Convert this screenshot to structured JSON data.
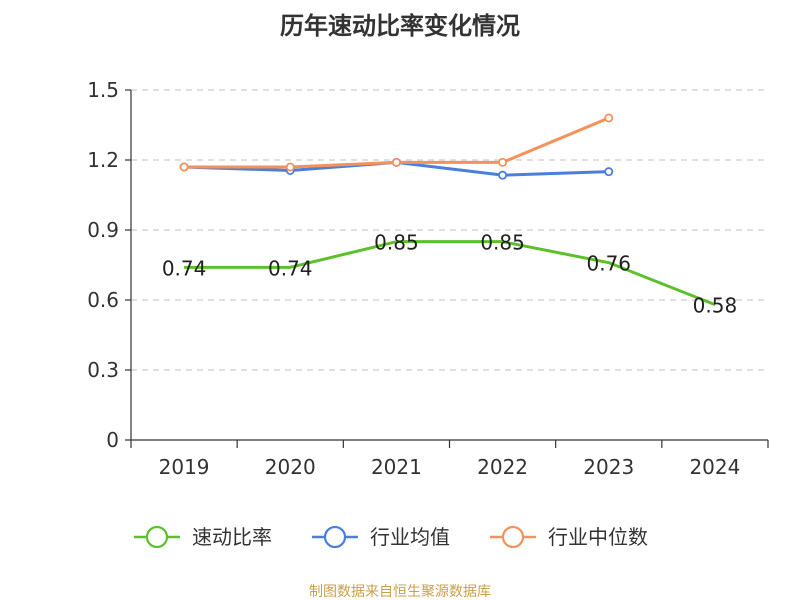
{
  "chart_data": {
    "type": "line",
    "title": "历年速动比率变化情况",
    "categories": [
      "2019",
      "2020",
      "2021",
      "2022",
      "2023",
      "2024"
    ],
    "y_ticks": [
      "0",
      "0.3",
      "0.6",
      "0.9",
      "1.2",
      "1.5"
    ],
    "ylim": [
      0,
      1.5
    ],
    "grid": true,
    "legend_position": "bottom",
    "series": [
      {
        "name": "速动比率",
        "color": "#5cc02a",
        "values": [
          0.74,
          0.74,
          0.85,
          0.85,
          0.76,
          0.58
        ],
        "labels": [
          "0.74",
          "0.74",
          "0.85",
          "0.85",
          "0.76",
          "0.58"
        ],
        "show_markers": false
      },
      {
        "name": "行业均值",
        "color": "#4a7fdc",
        "values": [
          1.17,
          1.155,
          1.19,
          1.135,
          1.15,
          null
        ],
        "show_markers": true
      },
      {
        "name": "行业中位数",
        "color": "#f5915a",
        "values": [
          1.17,
          1.17,
          1.19,
          1.19,
          1.38,
          null
        ],
        "show_markers": true
      }
    ],
    "source": "制图数据来自恒生聚源数据库"
  }
}
